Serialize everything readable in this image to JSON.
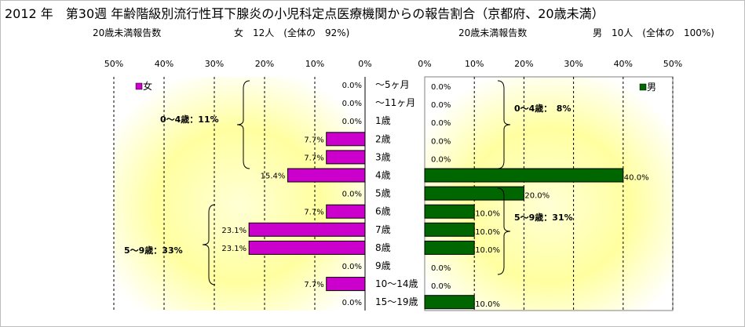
{
  "title": "2012 年　第30週 年齢階級別流行性耳下腺炎の小児科定点医療機関からの報告割合（京都府、20歳未満）",
  "female": {
    "report_label": "20歳未満報告数",
    "summary": "女　12人　(全体の　92%)",
    "legend": "女",
    "color": "#cc00cc",
    "bracket_labels": [
      "0～4歳：11%",
      "5～9歳：33%"
    ]
  },
  "male": {
    "report_label": "20歳未満報告数",
    "summary": "男　10人　(全体の　100%)",
    "legend": "男",
    "color": "#006600",
    "bracket_labels": [
      "0～4歳：　8%",
      "5～9歳：31%"
    ]
  },
  "chart_data": {
    "type": "bar",
    "categories": [
      "～5ヶ月",
      "～11ヶ月",
      "1歳",
      "2歳",
      "3歳",
      "4歳",
      "5歳",
      "6歳",
      "7歳",
      "8歳",
      "9歳",
      "10～14歳",
      "15～19歳"
    ],
    "series": [
      {
        "name": "女",
        "values": [
          0.0,
          0.0,
          0.0,
          7.7,
          7.7,
          15.4,
          0.0,
          7.7,
          23.1,
          23.1,
          0.0,
          7.7,
          0.0
        ]
      },
      {
        "name": "男",
        "values": [
          0.0,
          0.0,
          0.0,
          0.0,
          0.0,
          40.0,
          20.0,
          10.0,
          10.0,
          10.0,
          0.0,
          0.0,
          10.0
        ]
      }
    ],
    "data_labels": {
      "female": [
        "0.0%",
        "0.0%",
        "0.0%",
        "7.7%",
        "7.7%",
        "15.4%",
        "0.0%",
        "7.7%",
        "23.1%",
        "23.1%",
        "0.0%",
        "7.7%",
        "0.0%"
      ],
      "male": [
        "0.0%",
        "0.0%",
        "0.0%",
        "0.0%",
        "0.0%",
        "40.0%",
        "20.0%",
        "10.0%",
        "10.0%",
        "10.0%",
        "0.0%",
        "0.0%",
        "10.0%"
      ]
    },
    "xlim": [
      0,
      50
    ],
    "ticks": [
      0,
      10,
      20,
      30,
      40,
      50
    ],
    "tick_labels": [
      "0%",
      "10%",
      "20%",
      "30%",
      "40%",
      "50%"
    ],
    "grid": true,
    "legend_position": "top"
  }
}
